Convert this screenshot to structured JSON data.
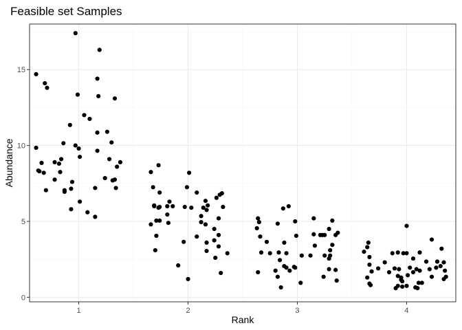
{
  "chart_data": {
    "type": "scatter",
    "title": "Feasible set Samples",
    "xlabel": "Rank",
    "ylabel": "Abundance",
    "xlim": [
      0.55,
      4.45
    ],
    "ylim": [
      -0.3,
      18.0
    ],
    "x_ticks": [
      1,
      2,
      3,
      4
    ],
    "y_ticks": [
      0,
      5,
      10,
      15
    ],
    "x_tick_labels": [
      "1",
      "2",
      "3",
      "4"
    ],
    "y_tick_labels": [
      "0",
      "5",
      "10",
      "15"
    ],
    "grid": true,
    "legend": "none",
    "point_color": "#000000",
    "points": [
      [
        0.97,
        17.4
      ],
      [
        1.19,
        16.3
      ],
      [
        0.61,
        14.7
      ],
      [
        0.69,
        14.1
      ],
      [
        0.71,
        13.8
      ],
      [
        1.17,
        14.4
      ],
      [
        0.99,
        13.35
      ],
      [
        1.18,
        13.25
      ],
      [
        1.33,
        13.1
      ],
      [
        1.05,
        12.0
      ],
      [
        1.1,
        11.75
      ],
      [
        0.92,
        11.35
      ],
      [
        1.17,
        10.85
      ],
      [
        1.26,
        10.9
      ],
      [
        1.3,
        10.2
      ],
      [
        0.86,
        10.15
      ],
      [
        0.61,
        9.85
      ],
      [
        0.97,
        10.0
      ],
      [
        1.0,
        9.8
      ],
      [
        1.17,
        9.65
      ],
      [
        1.01,
        9.25
      ],
      [
        1.28,
        9.1
      ],
      [
        0.84,
        9.1
      ],
      [
        0.78,
        8.9
      ],
      [
        0.66,
        8.85
      ],
      [
        1.38,
        8.9
      ],
      [
        1.35,
        8.6
      ],
      [
        0.82,
        8.8
      ],
      [
        0.63,
        8.35
      ],
      [
        0.64,
        8.3
      ],
      [
        0.68,
        8.2
      ],
      [
        0.83,
        8.25
      ],
      [
        1.24,
        7.85
      ],
      [
        0.78,
        7.75
      ],
      [
        1.31,
        7.7
      ],
      [
        1.33,
        7.75
      ],
      [
        0.94,
        7.6
      ],
      [
        0.87,
        7.05
      ],
      [
        0.7,
        7.05
      ],
      [
        0.87,
        6.95
      ],
      [
        1.15,
        7.2
      ],
      [
        1.34,
        7.2
      ],
      [
        0.93,
        7.15
      ],
      [
        1.01,
        6.3
      ],
      [
        0.93,
        5.8
      ],
      [
        1.08,
        5.6
      ],
      [
        1.15,
        5.3
      ],
      [
        1.66,
        8.25
      ],
      [
        2.01,
        8.2
      ],
      [
        1.73,
        8.7
      ],
      [
        1.68,
        7.25
      ],
      [
        1.99,
        7.25
      ],
      [
        1.74,
        6.9
      ],
      [
        1.69,
        6.05
      ],
      [
        1.69,
        6.0
      ],
      [
        1.83,
        6.3
      ],
      [
        1.81,
        6.0
      ],
      [
        1.86,
        6.0
      ],
      [
        2.08,
        6.9
      ],
      [
        2.16,
        6.35
      ],
      [
        2.18,
        6.05
      ],
      [
        2.26,
        6.55
      ],
      [
        2.29,
        6.75
      ],
      [
        2.31,
        6.85
      ],
      [
        1.73,
        5.9
      ],
      [
        1.74,
        5.95
      ],
      [
        1.97,
        5.95
      ],
      [
        2.03,
        5.9
      ],
      [
        2.14,
        5.9
      ],
      [
        2.32,
        5.95
      ],
      [
        1.81,
        5.45
      ],
      [
        2.17,
        5.75
      ],
      [
        2.12,
        5.35
      ],
      [
        2.28,
        5.2
      ],
      [
        1.74,
        5.05
      ],
      [
        1.71,
        5.05
      ],
      [
        1.66,
        4.8
      ],
      [
        1.82,
        4.9
      ],
      [
        2.12,
        4.95
      ],
      [
        2.16,
        4.8
      ],
      [
        2.24,
        4.5
      ],
      [
        1.71,
        4.05
      ],
      [
        2.08,
        4.0
      ],
      [
        2.28,
        4.1
      ],
      [
        1.96,
        3.65
      ],
      [
        2.17,
        3.6
      ],
      [
        2.24,
        3.75
      ],
      [
        2.28,
        3.35
      ],
      [
        1.7,
        3.1
      ],
      [
        2.17,
        3.05
      ],
      [
        2.25,
        2.6
      ],
      [
        2.36,
        2.9
      ],
      [
        1.91,
        2.1
      ],
      [
        2.3,
        1.6
      ],
      [
        2.0,
        1.2
      ],
      [
        2.92,
        6.0
      ],
      [
        2.87,
        5.85
      ],
      [
        2.64,
        5.2
      ],
      [
        3.15,
        5.2
      ],
      [
        3.32,
        5.05
      ],
      [
        2.65,
        4.95
      ],
      [
        2.98,
        5.0
      ],
      [
        2.82,
        4.85
      ],
      [
        3.29,
        4.5
      ],
      [
        2.63,
        4.55
      ],
      [
        3.15,
        4.15
      ],
      [
        3.21,
        4.1
      ],
      [
        3.23,
        4.1
      ],
      [
        3.25,
        4.1
      ],
      [
        2.99,
        4.05
      ],
      [
        3.35,
        4.1
      ],
      [
        3.37,
        4.25
      ],
      [
        2.66,
        4.0
      ],
      [
        2.72,
        3.65
      ],
      [
        2.88,
        3.6
      ],
      [
        3.16,
        3.4
      ],
      [
        3.3,
        3.1
      ],
      [
        3.32,
        3.45
      ],
      [
        2.67,
        2.95
      ],
      [
        2.75,
        2.9
      ],
      [
        2.83,
        2.95
      ],
      [
        2.9,
        2.9
      ],
      [
        3.04,
        2.75
      ],
      [
        3.12,
        2.75
      ],
      [
        3.25,
        2.75
      ],
      [
        3.3,
        2.75
      ],
      [
        3.29,
        2.55
      ],
      [
        2.84,
        2.45
      ],
      [
        2.88,
        2.05
      ],
      [
        2.9,
        1.95
      ],
      [
        2.97,
        2.0
      ],
      [
        2.98,
        1.95
      ],
      [
        3.29,
        1.85
      ],
      [
        2.8,
        1.75
      ],
      [
        2.93,
        1.75
      ],
      [
        3.35,
        1.8
      ],
      [
        2.64,
        1.65
      ],
      [
        2.82,
        1.35
      ],
      [
        3.24,
        1.35
      ],
      [
        3.36,
        1.1
      ],
      [
        3.03,
        0.95
      ],
      [
        2.85,
        0.65
      ],
      [
        4.0,
        4.7
      ],
      [
        4.23,
        3.8
      ],
      [
        3.65,
        3.6
      ],
      [
        3.64,
        3.3
      ],
      [
        4.32,
        3.2
      ],
      [
        3.61,
        3.0
      ],
      [
        3.87,
        2.9
      ],
      [
        3.92,
        2.95
      ],
      [
        3.97,
        2.9
      ],
      [
        4.0,
        2.9
      ],
      [
        4.12,
        2.95
      ],
      [
        3.66,
        2.65
      ],
      [
        4.06,
        2.55
      ],
      [
        4.18,
        2.35
      ],
      [
        4.28,
        2.35
      ],
      [
        4.34,
        2.3
      ],
      [
        3.8,
        2.3
      ],
      [
        3.66,
        2.15
      ],
      [
        4.31,
        2.05
      ],
      [
        4.03,
        1.95
      ],
      [
        3.74,
        1.9
      ],
      [
        3.89,
        1.9
      ],
      [
        3.93,
        1.85
      ],
      [
        4.09,
        1.85
      ],
      [
        4.21,
        1.85
      ],
      [
        4.27,
        1.95
      ],
      [
        3.68,
        1.7
      ],
      [
        3.84,
        1.65
      ],
      [
        4.06,
        1.65
      ],
      [
        4.12,
        1.75
      ],
      [
        4.35,
        1.75
      ],
      [
        3.92,
        1.4
      ],
      [
        3.95,
        1.3
      ],
      [
        4.01,
        1.45
      ],
      [
        4.23,
        1.35
      ],
      [
        4.36,
        1.35
      ],
      [
        3.64,
        1.3
      ],
      [
        3.95,
        1.15
      ],
      [
        3.96,
        1.05
      ],
      [
        4.14,
        0.95
      ],
      [
        4.34,
        1.2
      ],
      [
        4.11,
        0.95
      ],
      [
        3.66,
        0.9
      ],
      [
        3.67,
        0.8
      ],
      [
        3.92,
        0.75
      ],
      [
        3.96,
        0.7
      ],
      [
        4.0,
        0.75
      ],
      [
        3.9,
        0.6
      ],
      [
        4.08,
        0.65
      ],
      [
        4.1,
        0.6
      ]
    ]
  }
}
